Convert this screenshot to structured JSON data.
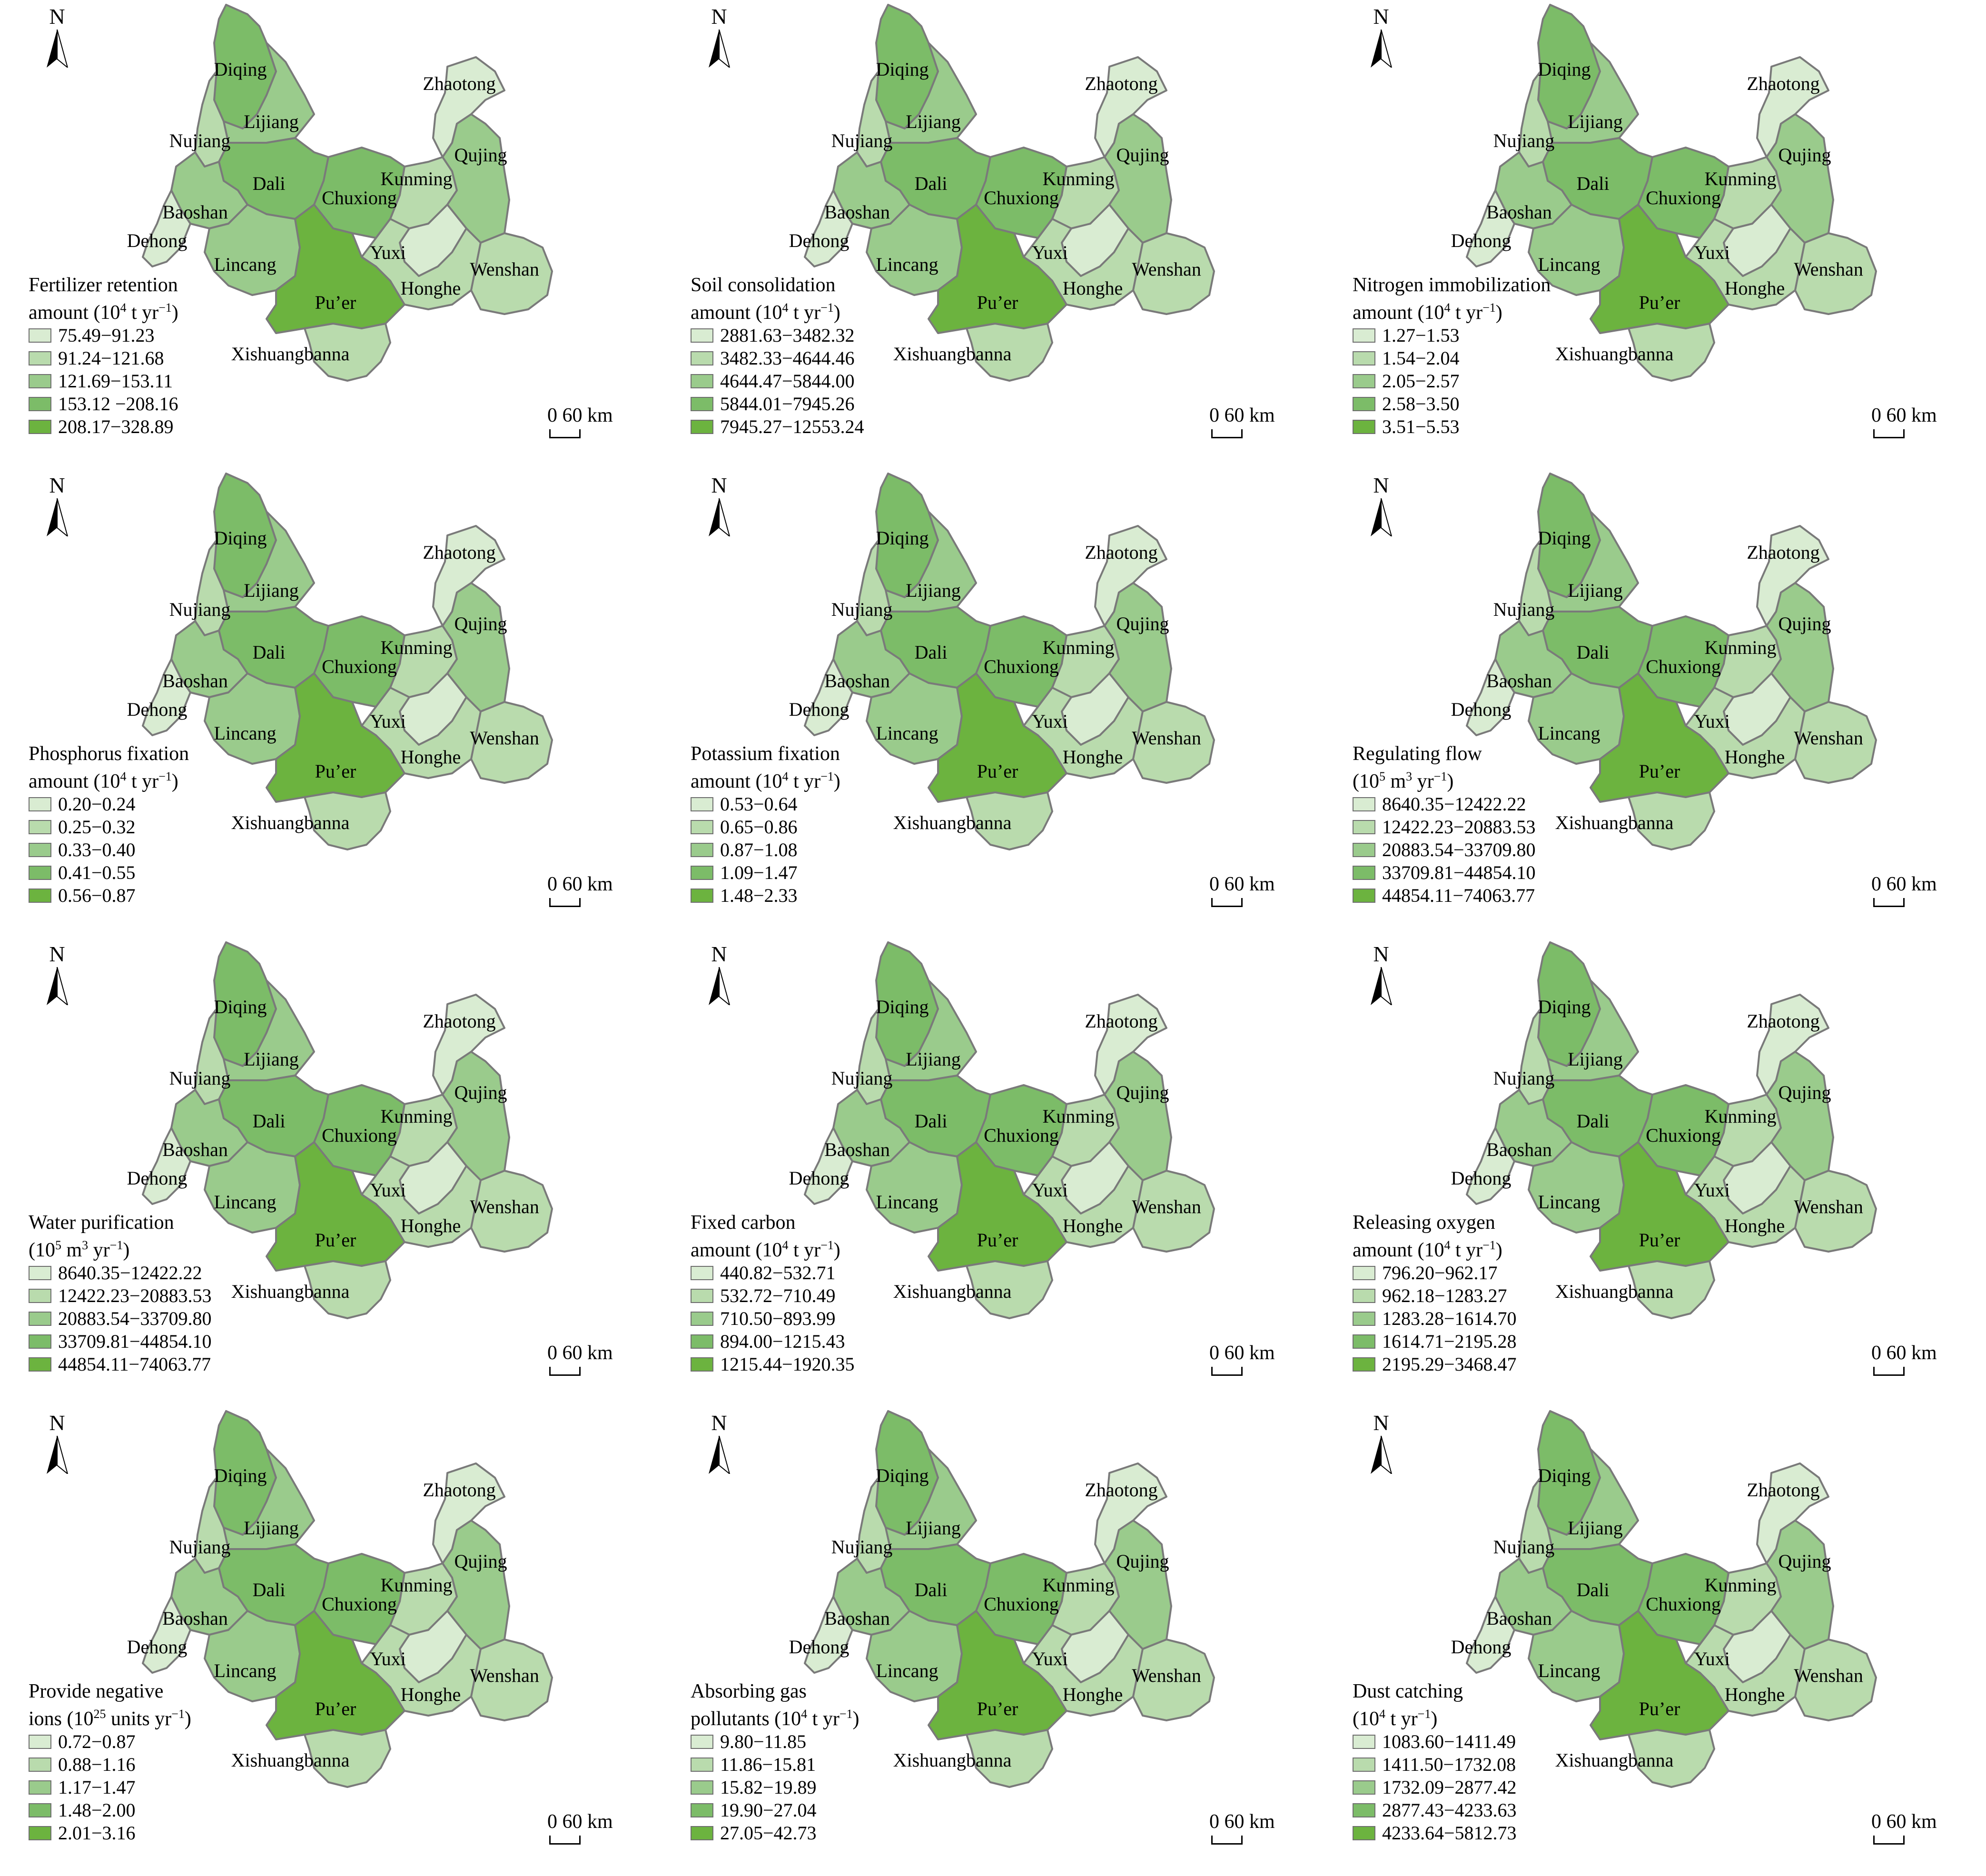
{
  "colors": {
    "class1": "#d9ecd2",
    "class2": "#b9dbad",
    "class3": "#9acb8c",
    "class4": "#7cbc68",
    "class5": "#6cb33f",
    "border": "#7a7a7a"
  },
  "north_label": "N",
  "scale_label": "0  60 km",
  "regions": [
    {
      "name": "Diqing",
      "class": 4
    },
    {
      "name": "Nujiang",
      "class": 2
    },
    {
      "name": "Lijiang",
      "class": 3
    },
    {
      "name": "Zhaotong",
      "class": 1
    },
    {
      "name": "Dali",
      "class": 4
    },
    {
      "name": "Chuxiong",
      "class": 4
    },
    {
      "name": "Kunming",
      "class": 2
    },
    {
      "name": "Qujing",
      "class": 3
    },
    {
      "name": "Baoshan",
      "class": 3
    },
    {
      "name": "Dehong",
      "class": 1
    },
    {
      "name": "Lincang",
      "class": 3
    },
    {
      "name": "Yuxi",
      "class": 1
    },
    {
      "name": "Pu’er",
      "class": 5
    },
    {
      "name": "Honghe",
      "class": 2
    },
    {
      "name": "Wenshan",
      "class": 2
    },
    {
      "name": "Xishuangbanna",
      "class": 2
    }
  ],
  "panels": [
    {
      "title_lines": [
        "Fertilizer retention",
        "amount (10^4 t yr^−1)"
      ],
      "classes": [
        "75.49−91.23",
        "91.24−121.68",
        "121.69−153.11",
        "153.12 −208.16",
        "208.17−328.89"
      ]
    },
    {
      "title_lines": [
        "Soil consolidation",
        "amount (10^4 t yr^−1)"
      ],
      "classes": [
        "2881.63−3482.32",
        "3482.33−4644.46",
        "4644.47−5844.00",
        "5844.01−7945.26",
        "7945.27−12553.24"
      ]
    },
    {
      "title_lines": [
        "Nitrogen immobilization",
        "amount (10^4 t yr^−1)"
      ],
      "classes": [
        "1.27−1.53",
        "1.54−2.04",
        "2.05−2.57",
        "2.58−3.50",
        "3.51−5.53"
      ]
    },
    {
      "title_lines": [
        "Phosphorus fixation",
        "amount (10^4 t yr^−1)"
      ],
      "classes": [
        "0.20−0.24",
        "0.25−0.32",
        "0.33−0.40",
        "0.41−0.55",
        "0.56−0.87"
      ]
    },
    {
      "title_lines": [
        "Potassium fixation",
        "amount (10^4 t yr^−1)"
      ],
      "classes": [
        "0.53−0.64",
        "0.65−0.86",
        "0.87−1.08",
        "1.09−1.47",
        "1.48−2.33"
      ]
    },
    {
      "title_lines": [
        "Regulating flow",
        "(10^5 m^3 yr^−1)"
      ],
      "classes": [
        "8640.35−12422.22",
        "12422.23−20883.53",
        "20883.54−33709.80",
        "33709.81−44854.10",
        "44854.11−74063.77"
      ]
    },
    {
      "title_lines": [
        "Water purification",
        "(10^5 m^3 yr^−1)"
      ],
      "classes": [
        "8640.35−12422.22",
        "12422.23−20883.53",
        "20883.54−33709.80",
        "33709.81−44854.10",
        "44854.11−74063.77"
      ]
    },
    {
      "title_lines": [
        "Fixed carbon",
        "amount (10^4 t yr^−1)"
      ],
      "classes": [
        "440.82−532.71",
        "532.72−710.49",
        "710.50−893.99",
        "894.00−1215.43",
        "1215.44−1920.35"
      ]
    },
    {
      "title_lines": [
        "Releasing oxygen",
        "amount (10^4 t yr^−1)"
      ],
      "classes": [
        "796.20−962.17",
        "962.18−1283.27",
        "1283.28−1614.70",
        "1614.71−2195.28",
        "2195.29−3468.47"
      ]
    },
    {
      "title_lines": [
        "Provide negative",
        "ions (10^25 units yr^−1)"
      ],
      "classes": [
        "0.72−0.87",
        "0.88−1.16",
        "1.17−1.47",
        "1.48−2.00",
        "2.01−3.16"
      ]
    },
    {
      "title_lines": [
        "Absorbing gas",
        "pollutants (10^4 t yr^−1)"
      ],
      "classes": [
        "9.80−11.85",
        "11.86−15.81",
        "15.82−19.89",
        "19.90−27.04",
        "27.05−42.73"
      ]
    },
    {
      "title_lines": [
        "Dust catching",
        "(10^4 t yr^−1)"
      ],
      "classes": [
        "1083.60−1411.49",
        "1411.50−1732.08",
        "1732.09−2877.42",
        "2877.43−4233.63",
        "4233.64−5812.73"
      ]
    }
  ]
}
